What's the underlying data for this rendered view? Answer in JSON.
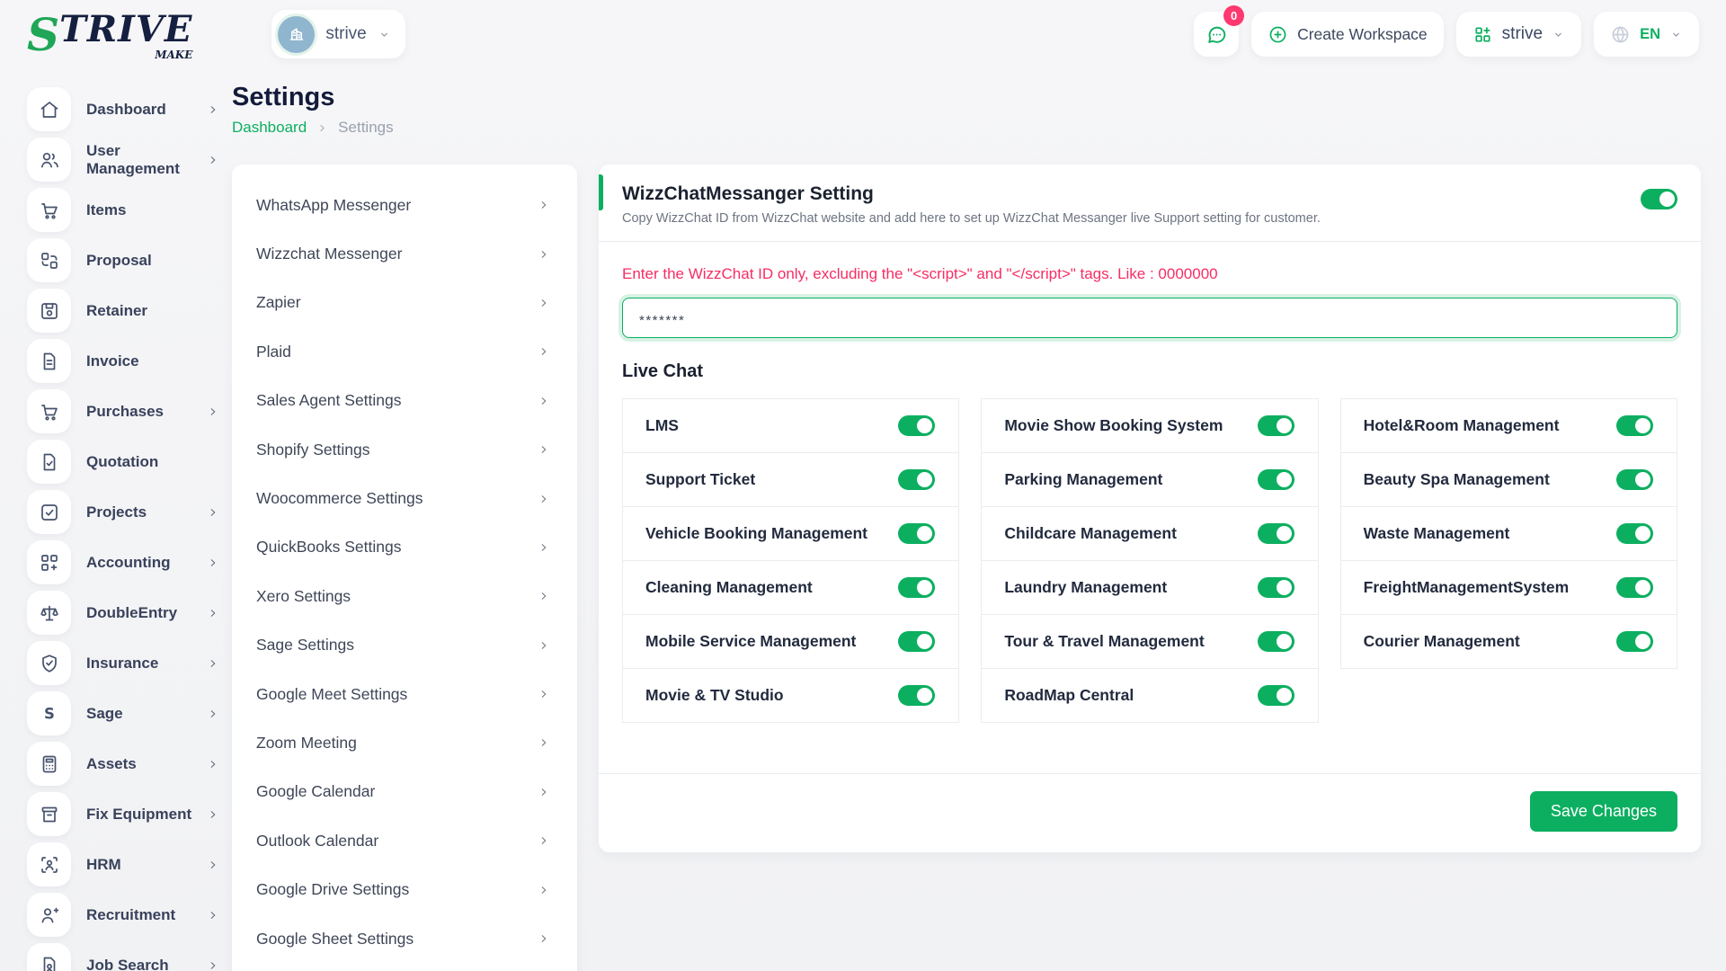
{
  "colors": {
    "accent": "#0caf60",
    "danger": "#f62d64",
    "badge": "#ff386f",
    "navy": "#131b3a"
  },
  "brand": {
    "logo_s": "S",
    "logo_rest": "TRIVE",
    "logo_sub": "MAKE"
  },
  "topbar": {
    "workspace_pill": {
      "label": "strive",
      "avatar_icon": "building-icon"
    },
    "messages": {
      "icon": "chat-bubble-icon",
      "badge": "0"
    },
    "create_workspace_label": "Create Workspace",
    "workspace_dropdown_label": "strive",
    "language": "EN"
  },
  "sidebar": {
    "items": [
      {
        "label": "Dashboard",
        "icon": "home-icon",
        "has_children": true
      },
      {
        "label": "User Management",
        "icon": "users-icon",
        "has_children": true
      },
      {
        "label": "Items",
        "icon": "cart-icon",
        "has_children": false
      },
      {
        "label": "Proposal",
        "icon": "proposal-icon",
        "has_children": false
      },
      {
        "label": "Retainer",
        "icon": "retainer-icon",
        "has_children": false
      },
      {
        "label": "Invoice",
        "icon": "invoice-icon",
        "has_children": false
      },
      {
        "label": "Purchases",
        "icon": "cart-icon",
        "has_children": true
      },
      {
        "label": "Quotation",
        "icon": "quotation-icon",
        "has_children": false
      },
      {
        "label": "Projects",
        "icon": "projects-icon",
        "has_children": true
      },
      {
        "label": "Accounting",
        "icon": "accounting-icon",
        "has_children": true
      },
      {
        "label": "DoubleEntry",
        "icon": "scales-icon",
        "has_children": true
      },
      {
        "label": "Insurance",
        "icon": "shield-check-icon",
        "has_children": true
      },
      {
        "label": "Sage",
        "icon": "sage-letter-icon",
        "has_children": true
      },
      {
        "label": "Assets",
        "icon": "calculator-icon",
        "has_children": true
      },
      {
        "label": "Fix Equipment",
        "icon": "archive-icon",
        "has_children": true
      },
      {
        "label": "HRM",
        "icon": "person-scan-icon",
        "has_children": true
      },
      {
        "label": "Recruitment",
        "icon": "user-plus-icon",
        "has_children": true
      },
      {
        "label": "Job Search",
        "icon": "job-search-icon",
        "has_children": true
      }
    ]
  },
  "page": {
    "title": "Settings",
    "breadcrumb": [
      "Dashboard",
      "Settings"
    ]
  },
  "settings_nav": {
    "items": [
      "WhatsApp Messenger",
      "Wizzchat Messenger",
      "Zapier",
      "Plaid",
      "Sales Agent Settings",
      "Shopify Settings",
      "Woocommerce Settings",
      "QuickBooks Settings",
      "Xero Settings",
      "Sage Settings",
      "Google Meet Settings",
      "Zoom Meeting",
      "Google Calendar",
      "Outlook Calendar",
      "Google Drive Settings",
      "Google Sheet Settings"
    ]
  },
  "panel": {
    "title": "WizzChatMessanger Setting",
    "description": "Copy WizzChat ID from WizzChat website and add here to set up WizzChat Messanger live Support setting for customer.",
    "enabled": true,
    "hint": "Enter the WizzChat ID only, excluding the \"<script>\" and \"</script>\" tags. Like : 0000000",
    "input_value": "*******",
    "live_chat": {
      "title": "Live Chat",
      "columns": [
        [
          {
            "label": "LMS",
            "on": true
          },
          {
            "label": "Support Ticket",
            "on": true
          },
          {
            "label": "Vehicle Booking Management",
            "on": true
          },
          {
            "label": "Cleaning Management",
            "on": true
          },
          {
            "label": "Mobile Service Management",
            "on": true
          },
          {
            "label": "Movie & TV Studio",
            "on": true
          }
        ],
        [
          {
            "label": "Movie Show Booking System",
            "on": true
          },
          {
            "label": "Parking Management",
            "on": true
          },
          {
            "label": "Childcare Management",
            "on": true
          },
          {
            "label": "Laundry Management",
            "on": true
          },
          {
            "label": "Tour & Travel Management",
            "on": true
          },
          {
            "label": "RoadMap Central",
            "on": true
          }
        ],
        [
          {
            "label": "Hotel&Room Management",
            "on": true
          },
          {
            "label": "Beauty Spa Management",
            "on": true
          },
          {
            "label": "Waste Management",
            "on": true
          },
          {
            "label": "FreightManagementSystem",
            "on": true
          },
          {
            "label": "Courier Management",
            "on": true
          }
        ]
      ]
    },
    "save_label": "Save Changes"
  }
}
